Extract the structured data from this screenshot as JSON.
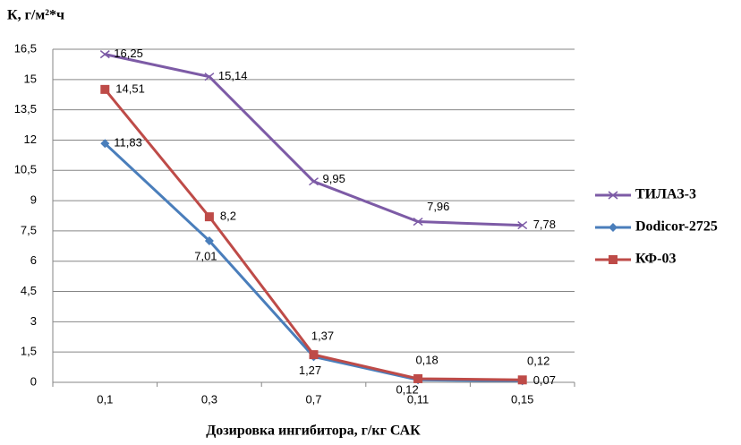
{
  "chart_data": {
    "type": "line",
    "y_label": "К, г/м²*ч",
    "x_label": "Дозировка ингибитора, г/кг САК",
    "categories": [
      "0,1",
      "0,3",
      "0,7",
      "0,11",
      "0,15"
    ],
    "series": [
      {
        "name": "ТИЛАЗ-3",
        "color": "#7d5ba6",
        "marker": "x",
        "values": [
          16.25,
          15.14,
          9.95,
          7.96,
          7.78
        ],
        "value_labels": [
          "16,25",
          "15,14",
          "9,95",
          "7,96",
          "7,78"
        ]
      },
      {
        "name": "Dodicor-2725",
        "color": "#4a7ebb",
        "marker": "diamond",
        "values": [
          11.83,
          7.01,
          1.27,
          0.12,
          0.07
        ],
        "value_labels": [
          "11,83",
          "7,01",
          "1,27",
          "0,12",
          "0,07"
        ]
      },
      {
        "name": "КФ-03",
        "color": "#be4b48",
        "marker": "square",
        "values": [
          14.51,
          8.2,
          1.37,
          0.18,
          0.12
        ],
        "value_labels": [
          "14,51",
          "8,2",
          "1,37",
          "0,18",
          "0,12"
        ]
      }
    ],
    "ylim": [
      0,
      16.5
    ],
    "yticks": [
      0,
      {
        "value": 1.5,
        "label": "1,5"
      },
      3,
      {
        "value": 4.5,
        "label": "4,5"
      },
      6,
      {
        "value": 7.5,
        "label": "7,5"
      },
      9,
      {
        "value": 10.5,
        "label": "10,5"
      },
      12,
      {
        "value": 13.5,
        "label": "13,5"
      },
      15,
      {
        "value": 16.5,
        "label": "16,5"
      }
    ],
    "grid": true,
    "legend": "right"
  }
}
